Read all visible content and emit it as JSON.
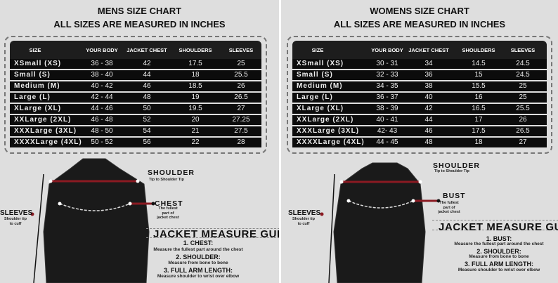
{
  "columns": [
    "SIZE",
    "YOUR BODY",
    "JACKET CHEST",
    "SHOULDERS",
    "SLEEVES"
  ],
  "men": {
    "title": "MENS SIZE CHART",
    "subtitle": "ALL SIZES ARE MEASURED IN INCHES",
    "rows": [
      [
        "XSmall (XS)",
        "36 - 38",
        "42",
        "17.5",
        "25"
      ],
      [
        "Small (S)",
        "38 - 40",
        "44",
        "18",
        "25.5"
      ],
      [
        "Medium (M)",
        "40 - 42",
        "46",
        "18.5",
        "26"
      ],
      [
        "Large (L)",
        "42 - 44",
        "48",
        "19",
        "26.5"
      ],
      [
        "XLarge (XL)",
        "44 - 46",
        "50",
        "19.5",
        "27"
      ],
      [
        "XXLarge (2XL)",
        "46 - 48",
        "52",
        "20",
        "27.25"
      ],
      [
        "XXXLarge (3XL)",
        "48 - 50",
        "54",
        "21",
        "27.5"
      ],
      [
        "XXXXLarge (4XL)",
        "50 - 52",
        "56",
        "22",
        "28"
      ]
    ],
    "shoulder_label": "SHOULDER",
    "shoulder_sub": "Tip to Shoulder Tip",
    "chest_label": "CHEST",
    "chest_sub": "The fullest part of jacket chest",
    "sleeves_label": "SLEEVES",
    "sleeves_sub": "Shoulder tip to cuff",
    "guide_title": "JACKET MEASURE GUIDE",
    "guide": [
      {
        "heading": "1. CHEST:",
        "desc": "Measure the fullest part around the chest"
      },
      {
        "heading": "2. SHOULDER:",
        "desc": "Measure from bone to bone"
      },
      {
        "heading": "3. FULL ARM LENGTH:",
        "desc": "Measure shoulder to wrist over elbow"
      }
    ]
  },
  "women": {
    "title": "WOMENS SIZE CHART",
    "subtitle": "ALL SIZES ARE MEASURED IN INCHES",
    "rows": [
      [
        "XSmall (XS)",
        "30 - 31",
        "34",
        "14.5",
        "24.5"
      ],
      [
        "Small (S)",
        "32 - 33",
        "36",
        "15",
        "24.5"
      ],
      [
        "Medium (M)",
        "34 - 35",
        "38",
        "15.5",
        "25"
      ],
      [
        "Large (L)",
        "36 - 37",
        "40",
        "16",
        "25"
      ],
      [
        "XLarge (XL)",
        "38 - 39",
        "42",
        "16.5",
        "25.5"
      ],
      [
        "XXLarge (2XL)",
        "40 - 41",
        "44",
        "17",
        "26"
      ],
      [
        "XXXLarge (3XL)",
        "42- 43",
        "46",
        "17.5",
        "26.5"
      ],
      [
        "XXXXLarge (4XL)",
        "44 - 45",
        "48",
        "18",
        "27"
      ]
    ],
    "shoulder_label": "SHOULDER",
    "shoulder_sub": "Tip to Shoulder Tip",
    "chest_label": "BUST",
    "chest_sub": "The fullest part of jacket chest",
    "sleeves_label": "SLEEVES",
    "sleeves_sub": "Shoulder tip to cuff",
    "guide_title": "JACKET MEASURE GUIDE",
    "guide": [
      {
        "heading": "1. BUST:",
        "desc": "Measure the fullest part around the chest"
      },
      {
        "heading": "2. SHOULDER:",
        "desc": "Measure from bone to bone"
      },
      {
        "heading": "3. FULL ARM LENGTH:",
        "desc": "Measure shoulder to wrist over elbow"
      }
    ]
  },
  "colors": {
    "table_bg": "#0c0c0c",
    "measure_line": "#8b1a22",
    "panel_bg": "#dedede"
  }
}
